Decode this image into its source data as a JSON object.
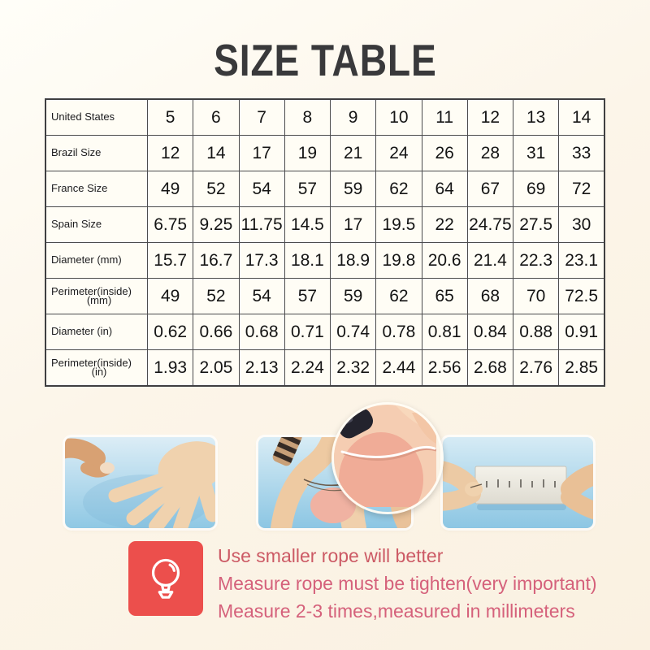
{
  "title": "SIZE TABLE",
  "chart_data": {
    "type": "table",
    "title": "SIZE TABLE",
    "rows": [
      {
        "label": "United States",
        "sublabel": "",
        "values": [
          "5",
          "6",
          "7",
          "8",
          "9",
          "10",
          "11",
          "12",
          "13",
          "14"
        ]
      },
      {
        "label": "Brazil Size",
        "sublabel": "",
        "values": [
          "12",
          "14",
          "17",
          "19",
          "21",
          "24",
          "26",
          "28",
          "31",
          "33"
        ]
      },
      {
        "label": "France Size",
        "sublabel": "",
        "values": [
          "49",
          "52",
          "54",
          "57",
          "59",
          "62",
          "64",
          "67",
          "69",
          "72"
        ]
      },
      {
        "label": "Spain Size",
        "sublabel": "",
        "values": [
          "6.75",
          "9.25",
          "11.75",
          "14.5",
          "17",
          "19.5",
          "22",
          "24.75",
          "27.5",
          "30"
        ]
      },
      {
        "label": "Diameter (mm)",
        "sublabel": "",
        "values": [
          "15.7",
          "16.7",
          "17.3",
          "18.1",
          "18.9",
          "19.8",
          "20.6",
          "21.4",
          "22.3",
          "23.1"
        ]
      },
      {
        "label": "Perimeter(inside)",
        "sublabel": "(mm)",
        "values": [
          "49",
          "52",
          "54",
          "57",
          "59",
          "62",
          "65",
          "68",
          "70",
          "72.5"
        ]
      },
      {
        "label": "Diameter (in)",
        "sublabel": "",
        "values": [
          "0.62",
          "0.66",
          "0.68",
          "0.71",
          "0.74",
          "0.78",
          "0.81",
          "0.84",
          "0.88",
          "0.91"
        ]
      },
      {
        "label": "Perimeter(inside)",
        "sublabel": "(in)",
        "values": [
          "1.93",
          "2.05",
          "2.13",
          "2.24",
          "2.32",
          "2.44",
          "2.56",
          "2.68",
          "2.76",
          "2.85"
        ]
      }
    ]
  },
  "photos": [
    {
      "name": "open-hand-photo"
    },
    {
      "name": "rope-wrapped-on-finger-photo"
    },
    {
      "name": "measuring-rope-with-ruler-photo"
    }
  ],
  "tips": {
    "icon": "lightbulb-icon",
    "lines": [
      "Use smaller rope will better",
      "Measure rope must be tighten(very important)",
      "Measure 2-3 times,measured in millimeters"
    ]
  },
  "colors": {
    "background": "#fcf5e9",
    "title_text": "#39393b",
    "table_border": "#4c4c4e",
    "table_cell_background": "#fffdf5",
    "tip_text_pink": "#d5617b",
    "tip_icon_background": "#ec4f4c",
    "photo_blue": "#8fc8e4"
  }
}
